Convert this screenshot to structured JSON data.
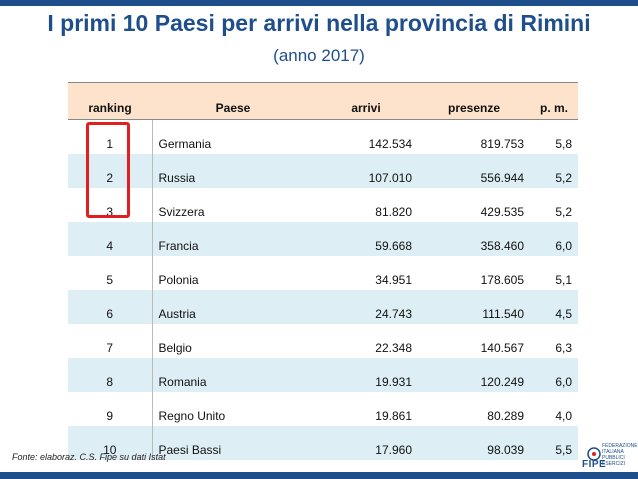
{
  "title": "I primi 10 Paesi per arrivi nella provincia di Rimini",
  "subtitle": "(anno 2017)",
  "table": {
    "headers": [
      "ranking",
      "Paese",
      "arrivi",
      "presenze",
      "p. m."
    ],
    "rows": [
      [
        "1",
        "Germania",
        "142.534",
        "819.753",
        "5,8"
      ],
      [
        "2",
        "Russia",
        "107.010",
        "556.944",
        "5,2"
      ],
      [
        "3",
        "Svizzera",
        "81.820",
        "429.535",
        "5,2"
      ],
      [
        "4",
        "Francia",
        "59.668",
        "358.460",
        "6,0"
      ],
      [
        "5",
        "Polonia",
        "34.951",
        "178.605",
        "5,1"
      ],
      [
        "6",
        "Austria",
        "24.743",
        "111.540",
        "4,5"
      ],
      [
        "7",
        "Belgio",
        "22.348",
        "140.567",
        "6,3"
      ],
      [
        "8",
        "Romania",
        "19.931",
        "120.249",
        "6,0"
      ],
      [
        "9",
        "Regno Unito",
        "19.861",
        "80.289",
        "4,0"
      ],
      [
        "10",
        "Paesi Bassi",
        "17.960",
        "98.039",
        "5,5"
      ]
    ]
  },
  "source": "Fonte: elaboraz. C.S. Fipe su dati Istat",
  "logo": {
    "word": "FIPE",
    "lines": [
      "FEDERAZIONE",
      "ITALIANA",
      "PUBBLICI",
      "ESERCIZI"
    ]
  },
  "colors": {
    "brand": "#1f4e8c",
    "header_bg": "#fde3cc",
    "row_alt": "#ddeef5",
    "highlight": "#e02020"
  }
}
